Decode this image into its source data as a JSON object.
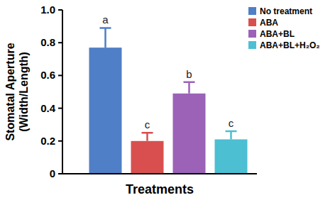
{
  "chart_data": {
    "type": "bar",
    "categories": [
      null
    ],
    "x_label": "Treatments",
    "y_label": [
      "Stomatal Aperture",
      "(Width/Length)"
    ],
    "ylim": [
      0,
      1
    ],
    "yticks": [
      0,
      0.2,
      0.4,
      0.6,
      0.8,
      {
        "value": 1,
        "label": "1.0"
      }
    ],
    "grid": false,
    "legend": "upper right",
    "series": [
      {
        "name": "No treatment",
        "color": "#4f7fc6",
        "values": [
          0.77
        ],
        "error": [
          0.12
        ]
      },
      {
        "name": "ABA",
        "color": "#d94f4f",
        "values": [
          0.2
        ],
        "error": [
          0.05
        ]
      },
      {
        "name": "ABA+BL",
        "color": "#9b62b8",
        "values": [
          0.49
        ],
        "error": [
          0.07
        ]
      },
      {
        "name": "ABA+BL+H₂O₂",
        "color": "#4cbfd2",
        "values": [
          0.21
        ],
        "error": [
          0.05
        ]
      }
    ],
    "annotations": [
      "a",
      "c",
      "b",
      "c"
    ]
  }
}
